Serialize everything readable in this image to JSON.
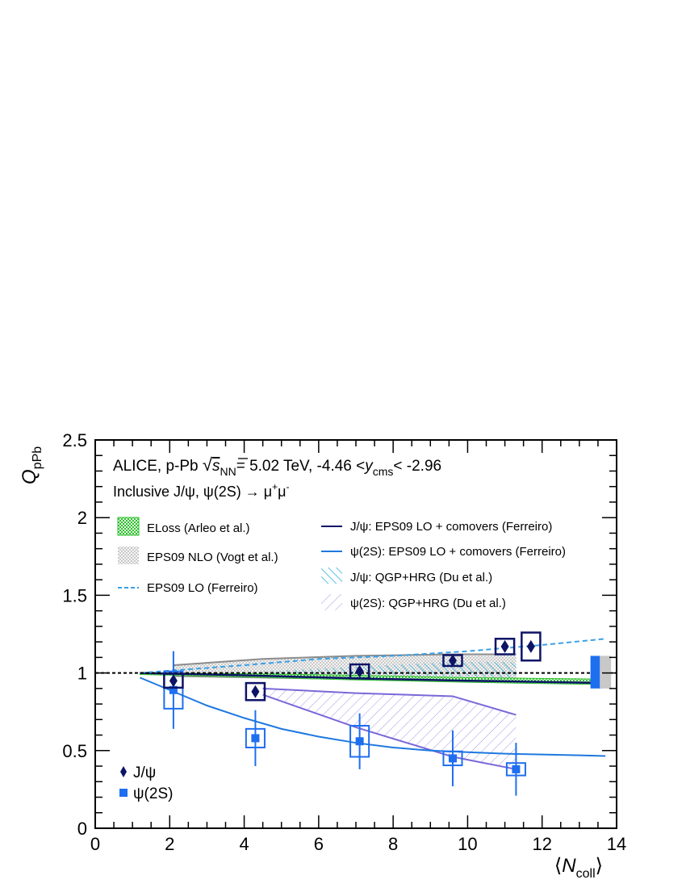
{
  "chart_data": {
    "type": "scatter",
    "xlabel_sym": "N",
    "xlabel_sub": "coll",
    "ylabel_sym": "Q",
    "ylabel_sub": "pPb",
    "xlim": [
      0,
      14
    ],
    "ylim": [
      0,
      2.5
    ],
    "x_ticks": [
      "0",
      "2",
      "4",
      "6",
      "8",
      "10",
      "12",
      "14"
    ],
    "y_ticks": [
      "0",
      "0.5",
      "1",
      "1.5",
      "2",
      "2.5"
    ],
    "header": {
      "experiment": "ALICE, p-Pb",
      "sqrt_sym": "s",
      "sqrt_sub": "NN",
      "energy": "= 5.02 TeV, -4.46 <",
      "y_sym": "y",
      "y_sub": "cms",
      "y_upper": "< -2.96",
      "line2_a": "Inclusive J/ψ, ψ(2S) → μ",
      "line2_sup1": "+",
      "line2_b": "μ",
      "line2_sup2": "-"
    },
    "legend_models": [
      "ELoss (Arleo et al.)",
      "EPS09 NLO (Vogt et al.)",
      "EPS09 LO (Ferreiro)",
      "J/ψ: EPS09 LO + comovers (Ferreiro)",
      "ψ(2S): EPS09 LO + comovers (Ferreiro)",
      "J/ψ: QGP+HRG (Du et al.)",
      "ψ(2S): QGP+HRG (Du et al.)"
    ],
    "legend_data": [
      "J/ψ",
      "ψ(2S)"
    ],
    "colors": {
      "jpsi": "#0d1466",
      "psi2s": "#1e6ef0",
      "eloss": "#2ec02e",
      "eps09nlo": "#8c8c8c",
      "eps09lo": "#3aa0e6",
      "jpsi_comovers": "#0d1466",
      "psi2s_comovers": "#1e78e0",
      "jpsi_qgp": "#30b4dc",
      "psi2s_qgp": "#7a68d8",
      "global_jpsi": "#1e6ef0",
      "global_psi2s": "#c8c8c8"
    },
    "series": [
      {
        "name": "J/ψ",
        "points": [
          {
            "x": 2.1,
            "y": 0.95,
            "stat": 0.03,
            "sys": 0.045,
            "sys_dx": 0.25
          },
          {
            "x": 4.3,
            "y": 0.88,
            "stat": 0.03,
            "sys": 0.055,
            "sys_dx": 0.25
          },
          {
            "x": 7.1,
            "y": 1.01,
            "stat": 0.03,
            "sys": 0.045,
            "sys_dx": 0.25
          },
          {
            "x": 9.6,
            "y": 1.08,
            "stat": 0.03,
            "sys": 0.035,
            "sys_dx": 0.25
          },
          {
            "x": 11.0,
            "y": 1.17,
            "stat": 0.03,
            "sys": 0.05,
            "sys_dx": 0.25
          },
          {
            "x": 11.7,
            "y": 1.17,
            "stat": 0.03,
            "sys": 0.09,
            "sys_dx": 0.25
          }
        ]
      },
      {
        "name": "ψ(2S)",
        "points": [
          {
            "x": 2.1,
            "y": 0.89,
            "stat": 0.25,
            "sys": 0.12,
            "sys_dx": 0.25
          },
          {
            "x": 4.3,
            "y": 0.58,
            "stat": 0.18,
            "sys": 0.06,
            "sys_dx": 0.25
          },
          {
            "x": 7.1,
            "y": 0.56,
            "stat": 0.18,
            "sys": 0.1,
            "sys_dx": 0.25
          },
          {
            "x": 9.6,
            "y": 0.45,
            "stat": 0.18,
            "sys": 0.045,
            "sys_dx": 0.25
          },
          {
            "x": 11.3,
            "y": 0.38,
            "stat": 0.17,
            "sys": 0.04,
            "sys_dx": 0.25
          }
        ]
      }
    ],
    "models": {
      "eps09lo": {
        "x": [
          1.2,
          4,
          6,
          8,
          10,
          12,
          13.7
        ],
        "y": [
          1.0,
          1.05,
          1.09,
          1.11,
          1.14,
          1.18,
          1.22
        ]
      },
      "psi2s_comovers": {
        "x": [
          1.2,
          2,
          3,
          4,
          5,
          6,
          7,
          8,
          9,
          10,
          11,
          12,
          13,
          13.7
        ],
        "y": [
          0.97,
          0.89,
          0.79,
          0.71,
          0.64,
          0.59,
          0.55,
          0.52,
          0.5,
          0.49,
          0.48,
          0.475,
          0.47,
          0.465
        ]
      },
      "jpsi_comovers": {
        "x": [
          1.2,
          4,
          7,
          10,
          13.7
        ],
        "y": [
          1.0,
          0.985,
          0.965,
          0.95,
          0.935
        ]
      },
      "eps09nlo_upper": {
        "x": [
          2.1,
          4.5,
          7,
          9.6,
          11.3
        ],
        "y": [
          1.05,
          1.09,
          1.11,
          1.12,
          1.12
        ]
      },
      "eps09nlo_lower": {
        "x": [
          2.1,
          4.5,
          7,
          9.6,
          11.3
        ],
        "y": [
          0.98,
          0.97,
          0.96,
          0.95,
          0.95
        ]
      },
      "eloss_upper": {
        "x": [
          1.2,
          4,
          7,
          10,
          13.7
        ],
        "y": [
          1.0,
          0.995,
          0.985,
          0.97,
          0.96
        ]
      },
      "eloss_lower": {
        "x": [
          1.2,
          4,
          7,
          10,
          13.7
        ],
        "y": [
          0.99,
          0.975,
          0.955,
          0.94,
          0.925
        ]
      },
      "jpsi_qgp_upper": {
        "x": [
          4.5,
          7,
          9.6,
          11.3
        ],
        "y": [
          1.01,
          1.04,
          1.07,
          1.07
        ]
      },
      "jpsi_qgp_lower": {
        "x": [
          4.5,
          7,
          9.6,
          11.3
        ],
        "y": [
          0.98,
          0.99,
          0.98,
          0.97
        ]
      },
      "psi2s_qgp_upper": {
        "x": [
          4.5,
          7,
          9.6,
          11.3
        ],
        "y": [
          0.9,
          0.87,
          0.85,
          0.73
        ]
      },
      "psi2s_qgp_lower": {
        "x": [
          4.5,
          7,
          9.6,
          11.3
        ],
        "y": [
          0.86,
          0.65,
          0.46,
          0.38
        ]
      }
    },
    "global_boxes": [
      {
        "name": "J/ψ",
        "x": 13.45,
        "y_low": 0.9,
        "y_high": 1.11
      },
      {
        "name": "ψ(2S)",
        "x": 13.7,
        "y_low": 0.9,
        "y_high": 1.11
      }
    ],
    "reference_line": 1.0,
    "grid": false,
    "legend_position": "top-left"
  }
}
